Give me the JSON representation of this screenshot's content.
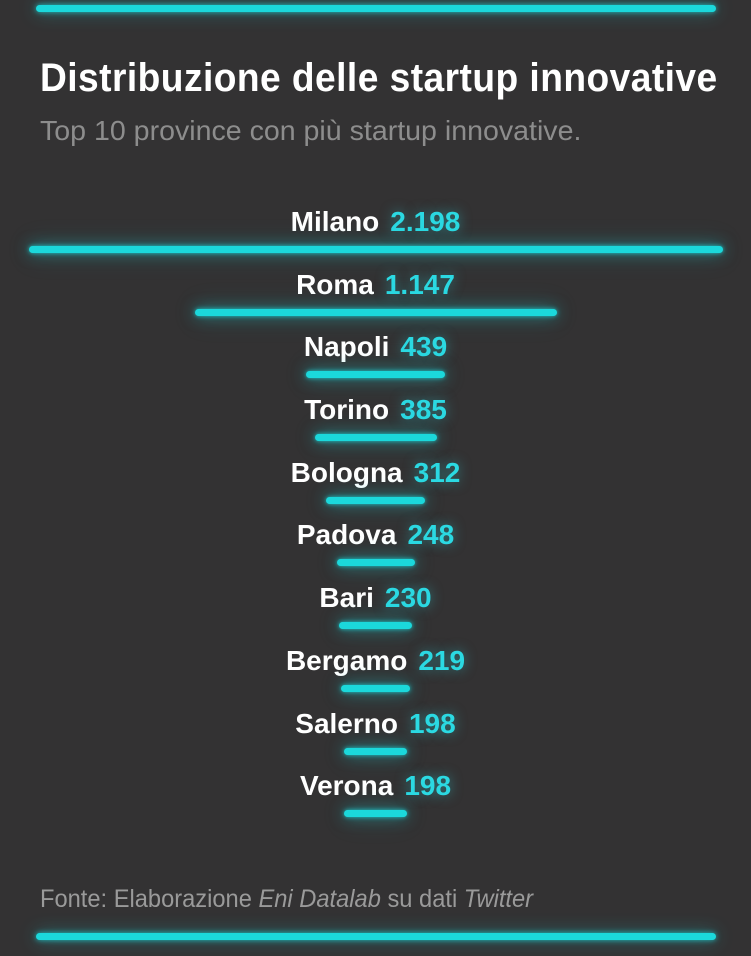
{
  "page": {
    "background_color": "#333233",
    "accent_color": "#1bd8db",
    "top_accent_bar": true,
    "bottom_accent_bar": true
  },
  "header": {
    "title": "Distribuzione delle startup innovative",
    "subtitle": "Top 10 province con più startup innovative."
  },
  "chart_data": {
    "type": "bar",
    "orientation": "horizontal",
    "alignment": "center",
    "title": "Distribuzione delle startup innovative",
    "subtitle": "Top 10 province con più startup innovative.",
    "categories": [
      "Milano",
      "Roma",
      "Napoli",
      "Torino",
      "Bologna",
      "Padova",
      "Bari",
      "Bergamo",
      "Salerno",
      "Verona"
    ],
    "values": [
      2198,
      1147,
      439,
      385,
      312,
      248,
      230,
      219,
      198,
      198
    ],
    "value_labels": [
      "2.198",
      "1.147",
      "439",
      "385",
      "312",
      "248",
      "230",
      "219",
      "198",
      "198"
    ],
    "value_axis_max": 2198,
    "bar_color": "#1bd8db",
    "label_color": "#ffffff",
    "value_color": "#2bd9e2",
    "grid": false,
    "legend_position": "none"
  },
  "footer": {
    "text_prefix": "Fonte: Elaborazione ",
    "source_italic": "Eni Datalab",
    "text_middle": " su dati ",
    "platform_italic": "Twitter"
  }
}
